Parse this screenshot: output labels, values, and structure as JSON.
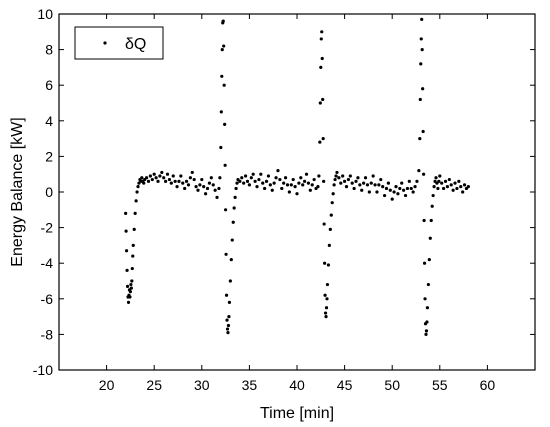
{
  "chart_data": {
    "type": "scatter",
    "title": "",
    "xlabel": "Time [min]",
    "ylabel": "Energy Balance [kW]",
    "xlim": [
      15,
      65
    ],
    "ylim": [
      -10,
      10
    ],
    "xticks": [
      20,
      25,
      30,
      35,
      40,
      45,
      50,
      55,
      60
    ],
    "yticks": [
      -10,
      -8,
      -6,
      -4,
      -2,
      0,
      2,
      4,
      6,
      8,
      10
    ],
    "xtick_labels": [
      "20",
      "25",
      "30",
      "35",
      "40",
      "45",
      "50",
      "55",
      "60"
    ],
    "ytick_labels": [
      "-10",
      "-8",
      "-6",
      "-4",
      "-2",
      "0",
      "2",
      "4",
      "6",
      "8",
      "10"
    ],
    "grid": false,
    "legend": {
      "position": "top-left",
      "entries": [
        "δQ"
      ]
    },
    "series": [
      {
        "name": "δQ",
        "color": "#000000",
        "points": [
          [
            22.0,
            -1.2
          ],
          [
            22.05,
            -2.2
          ],
          [
            22.1,
            -3.3
          ],
          [
            22.15,
            -4.4
          ],
          [
            22.2,
            -5.3
          ],
          [
            22.25,
            -5.9
          ],
          [
            22.3,
            -6.2
          ],
          [
            22.35,
            -5.8
          ],
          [
            22.4,
            -5.5
          ],
          [
            22.45,
            -5.9
          ],
          [
            22.5,
            -5.6
          ],
          [
            22.55,
            -5.2
          ],
          [
            22.6,
            -5.4
          ],
          [
            22.65,
            -5.0
          ],
          [
            22.7,
            -4.3
          ],
          [
            22.75,
            -3.6
          ],
          [
            22.8,
            -3.0
          ],
          [
            22.9,
            -2.1
          ],
          [
            23.0,
            -1.2
          ],
          [
            23.1,
            -0.5
          ],
          [
            23.2,
            0.0
          ],
          [
            23.3,
            0.3
          ],
          [
            23.4,
            0.5
          ],
          [
            23.5,
            0.7
          ],
          [
            23.6,
            0.6
          ],
          [
            23.7,
            0.8
          ],
          [
            23.8,
            0.6
          ],
          [
            23.9,
            0.5
          ],
          [
            24.0,
            0.7
          ],
          [
            24.2,
            0.8
          ],
          [
            24.4,
            0.6
          ],
          [
            24.6,
            0.9
          ],
          [
            24.8,
            0.7
          ],
          [
            25.0,
            1.0
          ],
          [
            25.2,
            0.8
          ],
          [
            25.4,
            0.6
          ],
          [
            25.6,
            0.9
          ],
          [
            25.8,
            1.1
          ],
          [
            26.0,
            0.8
          ],
          [
            26.2,
            0.6
          ],
          [
            26.4,
            1.0
          ],
          [
            26.6,
            0.7
          ],
          [
            26.8,
            0.5
          ],
          [
            27.0,
            0.9
          ],
          [
            27.2,
            0.6
          ],
          [
            27.4,
            0.3
          ],
          [
            27.6,
            0.6
          ],
          [
            27.8,
            0.9
          ],
          [
            28.0,
            0.5
          ],
          [
            28.2,
            0.2
          ],
          [
            28.4,
            0.6
          ],
          [
            28.6,
            0.4
          ],
          [
            28.8,
            0.8
          ],
          [
            29.0,
            1.1
          ],
          [
            29.2,
            0.7
          ],
          [
            29.4,
            0.3
          ],
          [
            29.6,
            0.1
          ],
          [
            29.8,
            0.4
          ],
          [
            30.0,
            0.7
          ],
          [
            30.2,
            0.3
          ],
          [
            30.4,
            -0.1
          ],
          [
            30.6,
            0.2
          ],
          [
            30.8,
            0.5
          ],
          [
            31.0,
            0.8
          ],
          [
            31.2,
            0.4
          ],
          [
            31.4,
            0.1
          ],
          [
            31.6,
            -0.3
          ],
          [
            31.8,
            0.2
          ],
          [
            31.9,
            0.8
          ],
          [
            32.0,
            2.5
          ],
          [
            32.05,
            4.5
          ],
          [
            32.1,
            6.5
          ],
          [
            32.15,
            8.0
          ],
          [
            32.2,
            9.5
          ],
          [
            32.25,
            9.6
          ],
          [
            32.3,
            8.2
          ],
          [
            32.35,
            6.0
          ],
          [
            32.4,
            3.8
          ],
          [
            32.45,
            1.5
          ],
          [
            32.5,
            -1.0
          ],
          [
            32.55,
            -3.5
          ],
          [
            32.6,
            -5.8
          ],
          [
            32.65,
            -7.2
          ],
          [
            32.7,
            -7.7
          ],
          [
            32.75,
            -7.9
          ],
          [
            32.8,
            -7.5
          ],
          [
            32.85,
            -7.0
          ],
          [
            32.9,
            -6.2
          ],
          [
            33.0,
            -5.0
          ],
          [
            33.1,
            -3.8
          ],
          [
            33.2,
            -2.7
          ],
          [
            33.3,
            -1.7
          ],
          [
            33.4,
            -0.9
          ],
          [
            33.5,
            -0.3
          ],
          [
            33.6,
            0.2
          ],
          [
            33.7,
            0.5
          ],
          [
            33.8,
            0.7
          ],
          [
            34.0,
            0.6
          ],
          [
            34.2,
            0.8
          ],
          [
            34.4,
            0.5
          ],
          [
            34.6,
            0.9
          ],
          [
            34.8,
            0.6
          ],
          [
            35.0,
            0.4
          ],
          [
            35.2,
            0.8
          ],
          [
            35.4,
            1.0
          ],
          [
            35.6,
            0.6
          ],
          [
            35.8,
            0.3
          ],
          [
            36.0,
            0.7
          ],
          [
            36.2,
            1.0
          ],
          [
            36.4,
            0.5
          ],
          [
            36.6,
            0.2
          ],
          [
            36.8,
            0.6
          ],
          [
            37.0,
            0.9
          ],
          [
            37.2,
            0.4
          ],
          [
            37.4,
            0.1
          ],
          [
            37.6,
            0.5
          ],
          [
            37.8,
            0.8
          ],
          [
            38.0,
            1.2
          ],
          [
            38.2,
            0.7
          ],
          [
            38.4,
            0.2
          ],
          [
            38.6,
            0.5
          ],
          [
            38.8,
            0.8
          ],
          [
            39.0,
            0.4
          ],
          [
            39.2,
            0.0
          ],
          [
            39.4,
            0.4
          ],
          [
            39.6,
            0.7
          ],
          [
            39.8,
            0.3
          ],
          [
            40.0,
            -0.1
          ],
          [
            40.2,
            0.5
          ],
          [
            40.4,
            0.8
          ],
          [
            40.6,
            0.4
          ],
          [
            40.8,
            0.6
          ],
          [
            41.0,
            1.0
          ],
          [
            41.2,
            0.5
          ],
          [
            41.4,
            0.1
          ],
          [
            41.6,
            0.4
          ],
          [
            41.8,
            0.7
          ],
          [
            42.0,
            0.2
          ],
          [
            42.2,
            0.3
          ],
          [
            42.3,
            0.9
          ],
          [
            42.4,
            2.8
          ],
          [
            42.45,
            5.0
          ],
          [
            42.5,
            7.0
          ],
          [
            42.55,
            8.6
          ],
          [
            42.6,
            9.0
          ],
          [
            42.65,
            7.5
          ],
          [
            42.7,
            5.2
          ],
          [
            42.75,
            3.0
          ],
          [
            42.8,
            0.6
          ],
          [
            42.85,
            -1.8
          ],
          [
            42.9,
            -4.0
          ],
          [
            42.95,
            -5.8
          ],
          [
            43.0,
            -6.8
          ],
          [
            43.05,
            -7.0
          ],
          [
            43.1,
            -6.5
          ],
          [
            43.15,
            -6.0
          ],
          [
            43.2,
            -5.2
          ],
          [
            43.3,
            -4.1
          ],
          [
            43.4,
            -3.0
          ],
          [
            43.5,
            -2.1
          ],
          [
            43.6,
            -1.3
          ],
          [
            43.7,
            -0.6
          ],
          [
            43.8,
            -0.1
          ],
          [
            43.9,
            0.4
          ],
          [
            44.0,
            0.7
          ],
          [
            44.1,
            0.9
          ],
          [
            44.2,
            1.1
          ],
          [
            44.4,
            0.8
          ],
          [
            44.6,
            0.5
          ],
          [
            44.8,
            0.9
          ],
          [
            45.0,
            0.6
          ],
          [
            45.2,
            0.3
          ],
          [
            45.4,
            0.7
          ],
          [
            45.6,
            0.9
          ],
          [
            45.8,
            0.5
          ],
          [
            46.0,
            0.2
          ],
          [
            46.2,
            0.6
          ],
          [
            46.4,
            0.8
          ],
          [
            46.6,
            0.4
          ],
          [
            46.8,
            0.1
          ],
          [
            47.0,
            0.5
          ],
          [
            47.2,
            0.8
          ],
          [
            47.4,
            0.4
          ],
          [
            47.6,
            0.0
          ],
          [
            47.8,
            0.5
          ],
          [
            48.0,
            0.9
          ],
          [
            48.2,
            0.4
          ],
          [
            48.4,
            0.0
          ],
          [
            48.6,
            0.4
          ],
          [
            48.8,
            0.7
          ],
          [
            49.0,
            0.3
          ],
          [
            49.2,
            -0.2
          ],
          [
            49.4,
            0.2
          ],
          [
            49.6,
            0.5
          ],
          [
            49.8,
            0.1
          ],
          [
            50.0,
            -0.4
          ],
          [
            50.2,
            0.0
          ],
          [
            50.4,
            0.3
          ],
          [
            50.6,
            -0.1
          ],
          [
            50.8,
            0.2
          ],
          [
            51.0,
            0.5
          ],
          [
            51.2,
            0.1
          ],
          [
            51.4,
            -0.2
          ],
          [
            51.6,
            0.2
          ],
          [
            51.8,
            0.6
          ],
          [
            52.0,
            0.2
          ],
          [
            52.2,
            0.0
          ],
          [
            52.4,
            0.3
          ],
          [
            52.6,
            0.6
          ],
          [
            52.8,
            1.2
          ],
          [
            52.9,
            3.0
          ],
          [
            52.95,
            5.2
          ],
          [
            53.0,
            7.2
          ],
          [
            53.05,
            8.6
          ],
          [
            53.1,
            9.7
          ],
          [
            53.15,
            8.0
          ],
          [
            53.2,
            5.8
          ],
          [
            53.25,
            3.4
          ],
          [
            53.3,
            1.0
          ],
          [
            53.35,
            -1.6
          ],
          [
            53.4,
            -4.0
          ],
          [
            53.45,
            -6.0
          ],
          [
            53.5,
            -7.4
          ],
          [
            53.55,
            -8.0
          ],
          [
            53.6,
            -7.8
          ],
          [
            53.65,
            -7.3
          ],
          [
            53.7,
            -6.5
          ],
          [
            53.8,
            -5.2
          ],
          [
            53.9,
            -3.8
          ],
          [
            54.0,
            -2.6
          ],
          [
            54.1,
            -1.6
          ],
          [
            54.2,
            -0.8
          ],
          [
            54.3,
            -0.2
          ],
          [
            54.4,
            0.3
          ],
          [
            54.5,
            0.6
          ],
          [
            54.6,
            0.8
          ],
          [
            54.7,
            0.5
          ],
          [
            54.8,
            0.2
          ],
          [
            54.9,
            0.6
          ],
          [
            55.0,
            0.9
          ],
          [
            55.2,
            0.5
          ],
          [
            55.4,
            0.2
          ],
          [
            55.6,
            0.6
          ],
          [
            55.8,
            0.3
          ],
          [
            56.0,
            0.7
          ],
          [
            56.2,
            0.4
          ],
          [
            56.4,
            0.1
          ],
          [
            56.6,
            0.5
          ],
          [
            56.8,
            0.2
          ],
          [
            57.0,
            0.6
          ],
          [
            57.2,
            0.3
          ],
          [
            57.4,
            0.0
          ],
          [
            57.6,
            0.4
          ],
          [
            57.8,
            0.2
          ],
          [
            58.0,
            0.3
          ]
        ]
      }
    ]
  }
}
